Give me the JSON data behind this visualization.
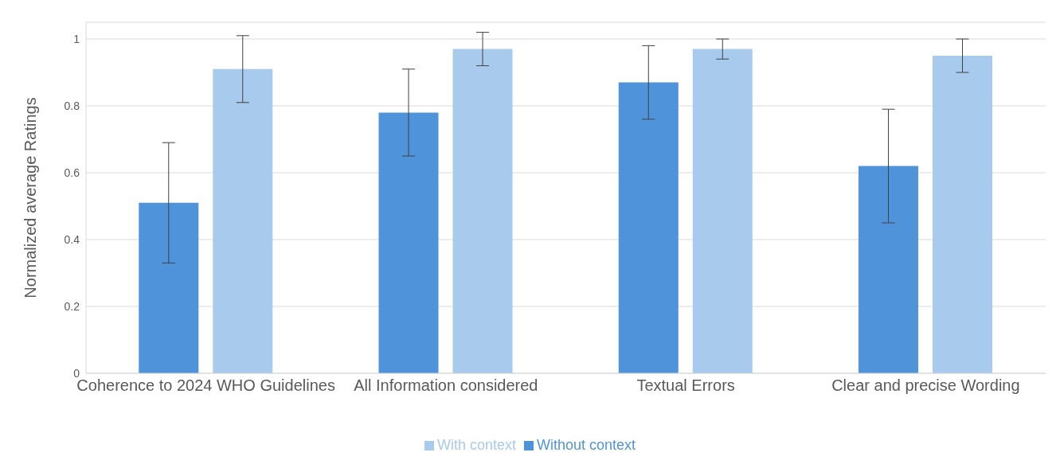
{
  "chart_data": {
    "type": "bar",
    "ylabel": "Normalized average Ratings",
    "categories": [
      "Coherence to 2024 WHO Guidelines",
      "All Information considered",
      "Textual Errors",
      "Clear and precise Wording"
    ],
    "series": [
      {
        "name": "Without context",
        "color": "#4f94db",
        "values": [
          0.51,
          0.78,
          0.87,
          0.62
        ],
        "errors": [
          0.18,
          0.13,
          0.11,
          0.17
        ]
      },
      {
        "name": "With context",
        "color": "#a8caec",
        "values": [
          0.91,
          0.97,
          0.97,
          0.95
        ],
        "errors": [
          0.1,
          0.05,
          0.03,
          0.05
        ]
      }
    ],
    "ylim": [
      0,
      1.05
    ],
    "yticks": [
      0,
      0.2,
      0.4,
      0.6,
      0.8,
      1
    ],
    "grid": "y",
    "legend": "bottom"
  }
}
